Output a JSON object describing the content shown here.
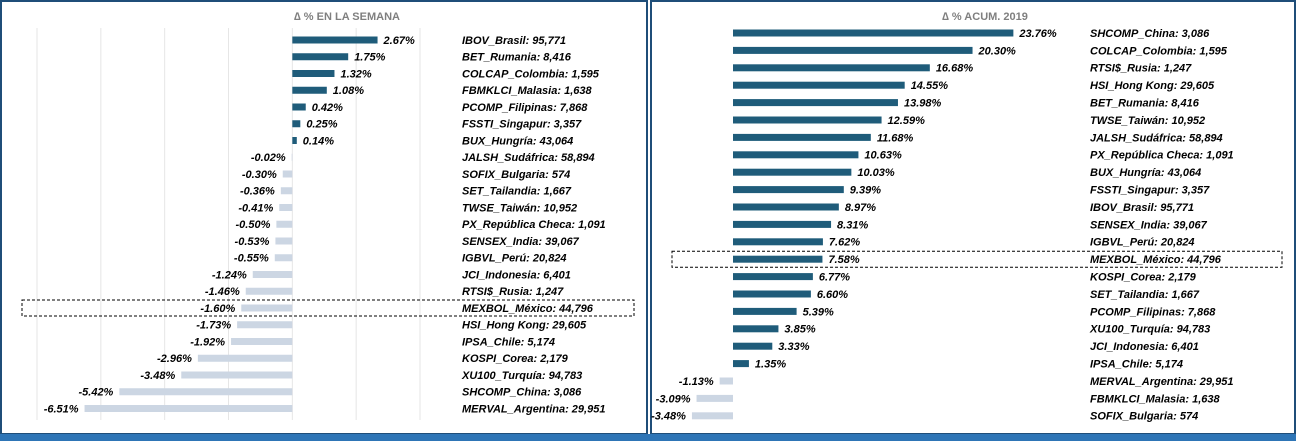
{
  "chart_data": [
    {
      "type": "bar",
      "title": "∆ % EN LA SEMANA",
      "categories": [
        "IBOV_Brasil: 95,771",
        "BET_Rumania: 8,416",
        "COLCAP_Colombia: 1,595",
        "FBMKLCI_Malasia: 1,638",
        "PCOMP_Filipinas: 7,868",
        "FSSTI_Singapur: 3,357",
        "BUX_Hungría: 43,064",
        "JALSH_Sudáfrica: 58,894",
        "SOFIX_Bulgaria: 574",
        "SET_Tailandia: 1,667",
        "TWSE_Taiwán: 10,952",
        "PX_República Checa: 1,091",
        "SENSEX_India: 39,067",
        "IGBVL_Perú: 20,824",
        "JCI_Indonesia: 6,401",
        "RTSI$_Rusia: 1,247",
        "MEXBOL_México: 44,796",
        "HSI_Hong Kong: 29,605",
        "IPSA_Chile: 5,174",
        "KOSPI_Corea: 2,179",
        "XU100_Turquía: 94,783",
        "SHCOMP_China: 3,086",
        "MERVAL_Argentina: 29,951"
      ],
      "values": [
        2.67,
        1.75,
        1.32,
        1.08,
        0.42,
        0.25,
        0.14,
        -0.02,
        -0.3,
        -0.36,
        -0.41,
        -0.5,
        -0.53,
        -0.55,
        -1.24,
        -1.46,
        -1.6,
        -1.73,
        -1.92,
        -2.96,
        -3.48,
        -5.42,
        -6.51
      ],
      "value_labels": [
        "2.67%",
        "1.75%",
        "1.32%",
        "1.08%",
        "0.42%",
        "0.25%",
        "0.14%",
        "-0.02%",
        "-0.30%",
        "-0.36%",
        "-0.41%",
        "-0.50%",
        "-0.53%",
        "-0.55%",
        "-1.24%",
        "-1.46%",
        "-1.60%",
        "-1.73%",
        "-1.92%",
        "-2.96%",
        "-3.48%",
        "-5.42%",
        "-6.51%"
      ],
      "positive_color": "#1f5c7a",
      "negative_color": "#ccd6e3",
      "xlim": [
        -8,
        4
      ],
      "xticks": [
        -8,
        -6,
        -4,
        -2,
        0,
        2,
        4
      ],
      "grid": true,
      "highlight_index": 16
    },
    {
      "type": "bar",
      "title": "∆ % ACUM. 2019",
      "categories": [
        "SHCOMP_China: 3,086",
        "COLCAP_Colombia: 1,595",
        "RTSI$_Rusia: 1,247",
        "HSI_Hong Kong: 29,605",
        "BET_Rumania: 8,416",
        "TWSE_Taiwán: 10,952",
        "JALSH_Sudáfrica: 58,894",
        "PX_República Checa: 1,091",
        "BUX_Hungría: 43,064",
        "FSSTI_Singapur: 3,357",
        "IBOV_Brasil: 95,771",
        "SENSEX_India: 39,067",
        "IGBVL_Perú: 20,824",
        "MEXBOL_México: 44,796",
        "KOSPI_Corea: 2,179",
        "SET_Tailandia: 1,667",
        "PCOMP_Filipinas: 7,868",
        "XU100_Turquía: 94,783",
        "JCI_Indonesia: 6,401",
        "IPSA_Chile: 5,174",
        "MERVAL_Argentina: 29,951",
        "FBMKLCI_Malasia: 1,638",
        "SOFIX_Bulgaria: 574"
      ],
      "values": [
        23.76,
        20.3,
        16.68,
        14.55,
        13.98,
        12.59,
        11.68,
        10.63,
        10.03,
        9.39,
        8.97,
        8.31,
        7.62,
        7.58,
        6.77,
        6.6,
        5.39,
        3.85,
        3.33,
        1.35,
        -1.13,
        -3.09,
        -3.48
      ],
      "value_labels": [
        "23.76%",
        "20.30%",
        "16.68%",
        "14.55%",
        "13.98%",
        "12.59%",
        "11.68%",
        "10.63%",
        "10.03%",
        "9.39%",
        "8.97%",
        "8.31%",
        "7.62%",
        "7.58%",
        "6.77%",
        "6.60%",
        "5.39%",
        "3.85%",
        "3.33%",
        "1.35%",
        "-1.13%",
        "-3.09%",
        "-3.48%"
      ],
      "positive_color": "#1f5c7a",
      "negative_color": "#ccd6e3",
      "xlim": [
        -5,
        25
      ],
      "grid": false,
      "highlight_index": 13
    }
  ]
}
